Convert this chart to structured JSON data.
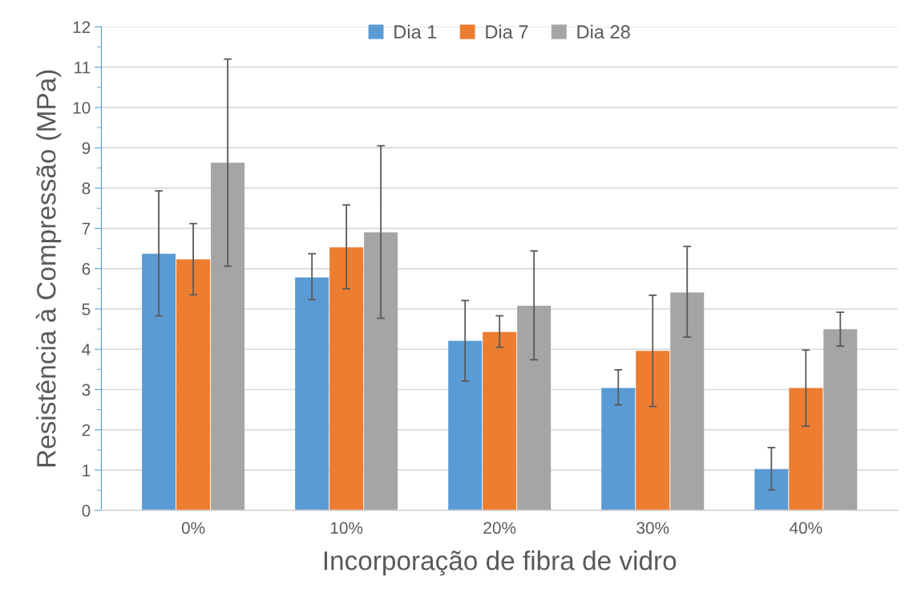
{
  "chart_data": {
    "type": "bar",
    "xlabel": "Incorporação de fibra de vidro",
    "ylabel": "Resistência à Compressão (MPa)",
    "categories": [
      "0%",
      "10%",
      "20%",
      "30%",
      "40%"
    ],
    "series": [
      {
        "name": "Dia 1",
        "color": "#5b9bd5",
        "values": [
          6.37,
          5.78,
          4.21,
          3.04,
          1.03
        ],
        "errors": [
          [
            4.83,
            7.93
          ],
          [
            5.23,
            6.37
          ],
          [
            3.21,
            5.21
          ],
          [
            2.62,
            3.49
          ],
          [
            0.51,
            1.56
          ]
        ]
      },
      {
        "name": "Dia 7",
        "color": "#ed7d31",
        "values": [
          6.23,
          6.53,
          4.43,
          3.96,
          3.04
        ],
        "errors": [
          [
            5.35,
            7.12
          ],
          [
            5.5,
            7.58
          ],
          [
            4.05,
            4.83
          ],
          [
            2.58,
            5.34
          ],
          [
            2.09,
            3.98
          ]
        ]
      },
      {
        "name": "Dia 28",
        "color": "#a5a5a5",
        "values": [
          8.63,
          6.9,
          5.08,
          5.41,
          4.5
        ],
        "errors": [
          [
            6.06,
            11.2
          ],
          [
            4.77,
            9.05
          ],
          [
            3.74,
            6.44
          ],
          [
            4.3,
            6.55
          ],
          [
            4.08,
            4.92
          ]
        ]
      }
    ],
    "ylim": [
      0,
      12
    ],
    "yticks": [
      0,
      1,
      2,
      3,
      4,
      5,
      6,
      7,
      8,
      9,
      10,
      11,
      12
    ],
    "grid": "y",
    "legend": "top"
  }
}
